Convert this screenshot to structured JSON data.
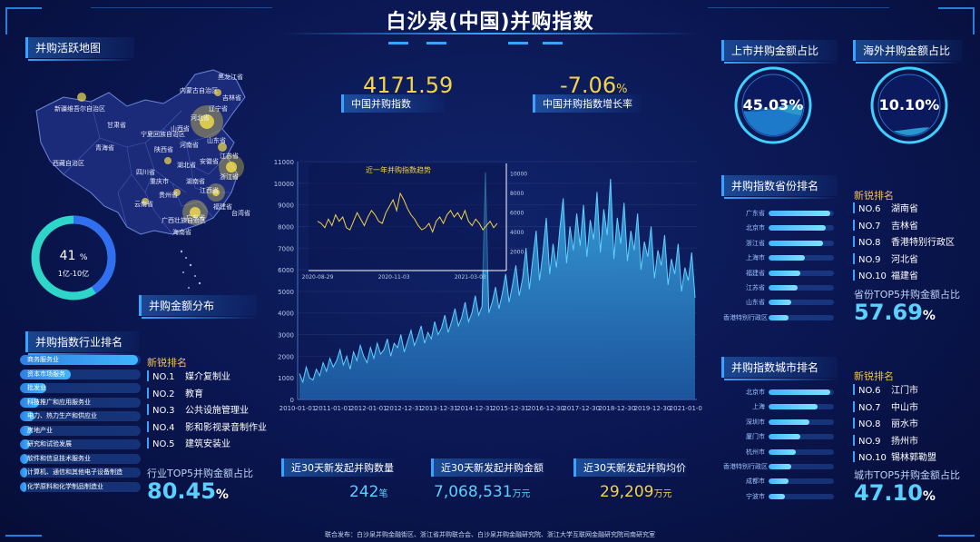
{
  "title": "白沙泉(中国)并购指数",
  "map": {
    "title": "并购活跃地图",
    "labels": [
      "新疆维吾尔自治区",
      "西藏自治区",
      "青海省",
      "甘肃省",
      "内蒙古自治区",
      "黑龙江省",
      "吉林省",
      "辽宁省",
      "山东省",
      "四川省",
      "云南省",
      "广西壮族自治区",
      "海南省",
      "陕西省",
      "河南省",
      "湖南省",
      "江西省",
      "福建省",
      "贵州省",
      "宁夏回族自治区",
      "山西省",
      "河北省",
      "安徽省",
      "湖北省",
      "重庆市",
      "广东省",
      "台湾省",
      "江苏省",
      "浙江省"
    ]
  },
  "distribution": {
    "title": "并购金额分布",
    "value": "41",
    "unit": "%",
    "range": "1亿-10亿",
    "fraction": 0.41
  },
  "index_kpi": {
    "value": "4171.59",
    "label": "中国并购指数"
  },
  "growth_kpi": {
    "value": "-7.06",
    "unit": "%",
    "label": "中国并购指数增长率"
  },
  "listed_share": {
    "title": "上市并购金额占比",
    "value": "45.03%",
    "fraction": 0.4503
  },
  "overseas_share": {
    "title": "海外并购金额占比",
    "value": "10.10%",
    "fraction": 0.101
  },
  "industry": {
    "title": "并购指数行业排名",
    "bars": [
      {
        "label": "商务服务业",
        "fraction": 0.98
      },
      {
        "label": "资本市场服务",
        "fraction": 0.42
      },
      {
        "label": "批发业",
        "fraction": 0.22
      },
      {
        "label": "科技推广和应用服务业",
        "fraction": 0.16
      },
      {
        "label": "电力、热力生产和供应业",
        "fraction": 0.12
      },
      {
        "label": "房地产业",
        "fraction": 0.1
      },
      {
        "label": "研究和试验发展",
        "fraction": 0.08
      },
      {
        "label": "软件和信息技术服务业",
        "fraction": 0.07
      },
      {
        "label": "计算机、通信和其他电子设备制造",
        "fraction": 0.06
      },
      {
        "label": "化学原料和化学制品制造业",
        "fraction": 0.05
      }
    ],
    "new_title": "新锐排名",
    "new_items": [
      {
        "no": "NO.1",
        "name": "媒介复制业"
      },
      {
        "no": "NO.2",
        "name": "教育"
      },
      {
        "no": "NO.3",
        "name": "公共设施管理业"
      },
      {
        "no": "NO.4",
        "name": "影和影视录音制作业"
      },
      {
        "no": "NO.5",
        "name": "建筑安装业"
      }
    ],
    "top5_label": "行业TOP5并购金额占比",
    "top5_value": "80.45",
    "top5_unit": "%"
  },
  "province": {
    "title": "并购指数省份排名",
    "bars": [
      {
        "label": "广东省",
        "fraction": 0.95
      },
      {
        "label": "北京市",
        "fraction": 0.88
      },
      {
        "label": "浙江省",
        "fraction": 0.84
      },
      {
        "label": "上海市",
        "fraction": 0.55
      },
      {
        "label": "福建省",
        "fraction": 0.48
      },
      {
        "label": "江苏省",
        "fraction": 0.45
      },
      {
        "label": "山东省",
        "fraction": 0.35
      },
      {
        "label": "香港特别行政区",
        "fraction": 0.3
      }
    ],
    "new_title": "新锐排名",
    "new_items": [
      {
        "no": "NO.6",
        "name": "湖南省"
      },
      {
        "no": "NO.7",
        "name": "吉林省"
      },
      {
        "no": "NO.8",
        "name": "香港特别行政区"
      },
      {
        "no": "NO.9",
        "name": "河北省"
      },
      {
        "no": "NO.10",
        "name": "福建省"
      }
    ],
    "top5_label": "省份TOP5并购金额占比",
    "top5_value": "57.69",
    "top5_unit": "%"
  },
  "city": {
    "title": "并购指数城市排名",
    "bars": [
      {
        "label": "北京市",
        "fraction": 0.95
      },
      {
        "label": "上海",
        "fraction": 0.75
      },
      {
        "label": "深圳市",
        "fraction": 0.62
      },
      {
        "label": "厦门市",
        "fraction": 0.48
      },
      {
        "label": "杭州市",
        "fraction": 0.42
      },
      {
        "label": "香港特别行政区",
        "fraction": 0.35
      },
      {
        "label": "成都市",
        "fraction": 0.3
      },
      {
        "label": "宁波市",
        "fraction": 0.25
      }
    ],
    "new_title": "新锐排名",
    "new_items": [
      {
        "no": "NO.6",
        "name": "江门市"
      },
      {
        "no": "NO.7",
        "name": "中山市"
      },
      {
        "no": "NO.8",
        "name": "丽水市"
      },
      {
        "no": "NO.9",
        "name": "扬州市"
      },
      {
        "no": "NO.10",
        "name": "锡林郭勒盟"
      }
    ],
    "top5_label": "城市TOP5并购金额占比",
    "top5_value": "47.10",
    "top5_unit": "%"
  },
  "stats": [
    {
      "label": "近30天新发起并购数量",
      "value": "242",
      "unit": "笔"
    },
    {
      "label": "近30天新发起并购金额",
      "value": "7,068,531",
      "unit": "万元"
    },
    {
      "label": "近30天新发起并购均价",
      "value": "29,209",
      "unit": "万元"
    }
  ],
  "footer": "联合发布：白沙泉并购金融街区、浙江省并购联合会、白沙泉并购金融研究院、浙江大学互联网金融研究院司南研究室",
  "chart_data": [
    {
      "type": "area",
      "title": "",
      "x_tick_labels": [
        "2010-01-01",
        "2011-01-01",
        "2012-01-01",
        "2012-12-31",
        "2013-12-31",
        "2014-12-31",
        "2015-12-31",
        "2016-12-30",
        "2017-12-30",
        "2018-12-30",
        "2019-12-30",
        "2021-01-05"
      ],
      "y_ticks": [
        0,
        1000,
        2000,
        3000,
        4000,
        5000,
        6000,
        7000,
        8000,
        9000,
        10000,
        11000
      ],
      "ylim": [
        0,
        11000
      ],
      "series": [
        {
          "values": [
            1200,
            800,
            1500,
            1000,
            900,
            1400,
            1100,
            1700,
            1300,
            1900,
            1500,
            1800,
            2300,
            1600,
            2000,
            1400,
            2200,
            1800,
            2500,
            2000,
            1700,
            2400,
            1900,
            2600,
            2100,
            2300,
            2800,
            2000,
            2600,
            2400,
            3000,
            2200,
            2700,
            3200,
            2500,
            2900,
            3400,
            2600,
            3100,
            2800,
            3600,
            3000,
            3300,
            3900,
            3100,
            3600,
            4200,
            3400,
            3800,
            4500,
            3600,
            4000,
            4800,
            3900,
            4300,
            10500,
            4000,
            4500,
            5200,
            4200,
            4900,
            5800,
            4500,
            5300,
            6200,
            4800,
            5600,
            7000,
            5100,
            6500,
            7800,
            5500,
            6800,
            8400,
            5800,
            7200,
            6100,
            7900,
            9300,
            6300,
            8000,
            6900,
            8600,
            7100,
            9000,
            6600,
            8300,
            7400,
            9600,
            6800,
            8800,
            7600,
            10200,
            6500,
            8400,
            7200,
            9100,
            6400,
            7800,
            6900,
            8600,
            6000,
            7300,
            6600,
            8000,
            5600,
            6900,
            6200,
            7600,
            5300,
            6500,
            5800,
            7200,
            5000,
            6100,
            5500,
            6800,
            4700
          ]
        }
      ]
    },
    {
      "type": "line",
      "title": "近一年并购指数趋势",
      "x_tick_labels": [
        "2020-08-29",
        "2020-11-03",
        "2021-03-03"
      ],
      "y_ticks": [
        2000,
        4000,
        6000,
        8000,
        10000
      ],
      "series": [
        {
          "values": [
            8300,
            8200,
            8000,
            8400,
            8100,
            8600,
            8300,
            8500,
            8000,
            7900,
            8300,
            8700,
            8400,
            8100,
            8500,
            8800,
            8600,
            8300,
            8200,
            8700,
            9000,
            9300,
            8800,
            9600,
            9300,
            8900,
            8600,
            8400,
            8100,
            7900,
            8000,
            8200,
            7800,
            8300,
            8500,
            8200,
            8600,
            8800,
            8500,
            8700,
            8400,
            8800,
            8300,
            8100,
            8400,
            8200,
            7900,
            8100,
            8300,
            8000,
            8200
          ]
        }
      ]
    }
  ]
}
